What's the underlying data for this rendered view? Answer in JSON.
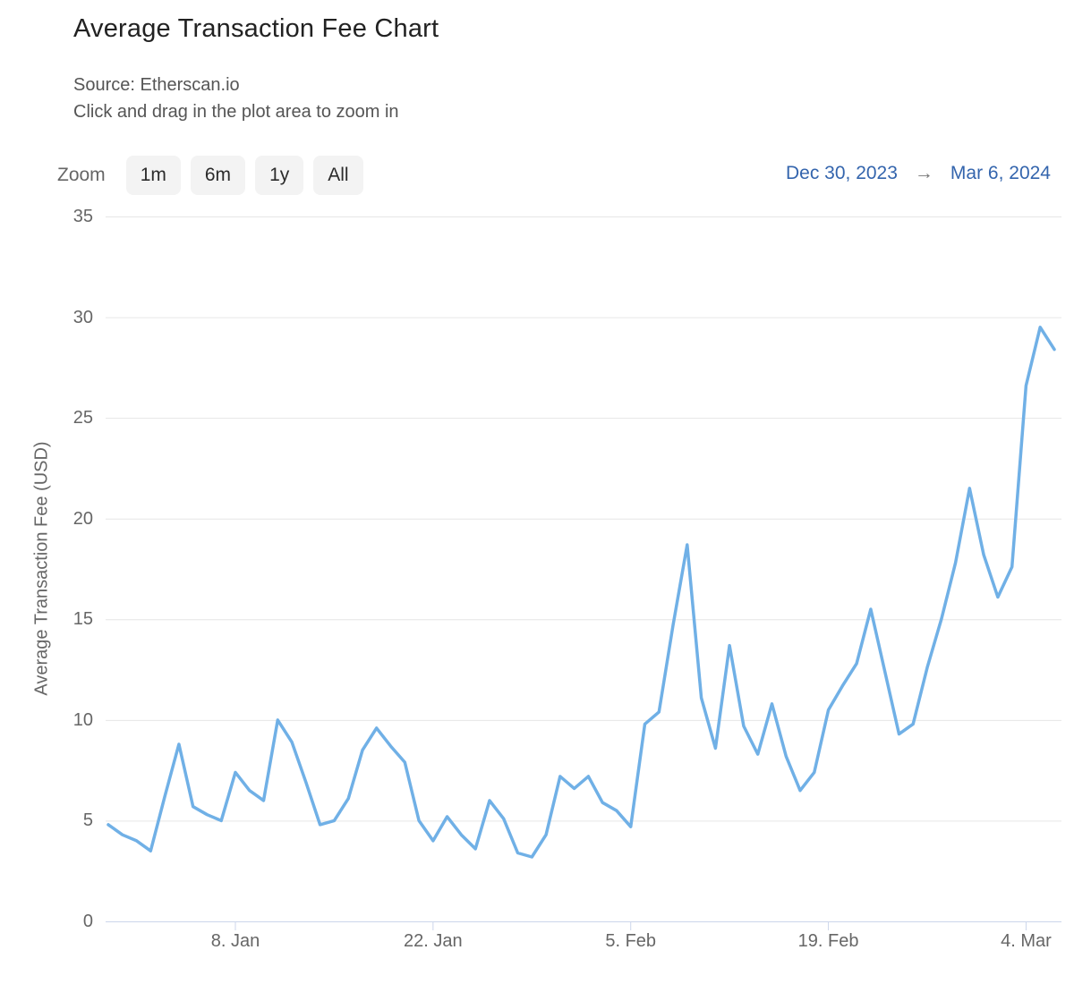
{
  "header": {
    "title": "Average Transaction Fee Chart",
    "subtitle1": "Source: Etherscan.io",
    "subtitle2": "Click and drag in the plot area to zoom in"
  },
  "toolbar": {
    "zoom_label": "Zoom",
    "buttons": [
      "1m",
      "6m",
      "1y",
      "All"
    ],
    "range_from": "Dec 30, 2023",
    "range_arrow": "→",
    "range_to": "Mar 6, 2024"
  },
  "colors": {
    "series": "#70B0E6",
    "grid": "#e6e6e6",
    "axis_line": "#ccd6eb",
    "axis_label": "#666666",
    "range_text": "#3465ad"
  },
  "chart_data": {
    "type": "line",
    "title": "Average Transaction Fee Chart",
    "subtitle": "Source: Etherscan.io",
    "ylabel": "Average Transaction Fee (USD)",
    "xlabel": "",
    "ylim": [
      0,
      35
    ],
    "yticks": [
      0,
      5,
      10,
      15,
      20,
      25,
      30,
      35
    ],
    "grid": "horizontal",
    "legend": "none",
    "start_date": "Dec 30, 2023",
    "end_date": "Mar 6, 2024",
    "interval": "daily",
    "xticks": [
      {
        "label": "8. Jan",
        "day_index": 9
      },
      {
        "label": "22. Jan",
        "day_index": 23
      },
      {
        "label": "5. Feb",
        "day_index": 37
      },
      {
        "label": "19. Feb",
        "day_index": 51
      },
      {
        "label": "4. Mar",
        "day_index": 65
      }
    ],
    "dates": [
      "Dec 30",
      "Dec 31",
      "Jan 1",
      "Jan 2",
      "Jan 3",
      "Jan 4",
      "Jan 5",
      "Jan 6",
      "Jan 7",
      "Jan 8",
      "Jan 9",
      "Jan 10",
      "Jan 11",
      "Jan 12",
      "Jan 13",
      "Jan 14",
      "Jan 15",
      "Jan 16",
      "Jan 17",
      "Jan 18",
      "Jan 19",
      "Jan 20",
      "Jan 21",
      "Jan 22",
      "Jan 23",
      "Jan 24",
      "Jan 25",
      "Jan 26",
      "Jan 27",
      "Jan 28",
      "Jan 29",
      "Jan 30",
      "Jan 31",
      "Feb 1",
      "Feb 2",
      "Feb 3",
      "Feb 4",
      "Feb 5",
      "Feb 6",
      "Feb 7",
      "Feb 8",
      "Feb 9",
      "Feb 10",
      "Feb 11",
      "Feb 12",
      "Feb 13",
      "Feb 14",
      "Feb 15",
      "Feb 16",
      "Feb 17",
      "Feb 18",
      "Feb 19",
      "Feb 20",
      "Feb 21",
      "Feb 22",
      "Feb 23",
      "Feb 24",
      "Feb 25",
      "Feb 26",
      "Feb 27",
      "Feb 28",
      "Feb 29",
      "Mar 1",
      "Mar 2",
      "Mar 3",
      "Mar 4",
      "Mar 5",
      "Mar 6"
    ],
    "values": [
      4.8,
      4.3,
      4.0,
      3.5,
      6.2,
      8.8,
      5.7,
      5.3,
      5.0,
      7.4,
      6.5,
      6.0,
      10.0,
      8.9,
      6.9,
      4.8,
      5.0,
      6.1,
      8.5,
      9.6,
      8.7,
      7.9,
      5.0,
      4.0,
      5.2,
      4.3,
      3.6,
      6.0,
      5.1,
      3.4,
      3.2,
      4.3,
      7.2,
      6.6,
      7.2,
      5.9,
      5.5,
      4.7,
      9.8,
      10.4,
      14.7,
      18.7,
      11.1,
      8.6,
      13.7,
      9.7,
      8.3,
      10.8,
      8.2,
      6.5,
      7.4,
      10.5,
      11.7,
      12.8,
      15.5,
      12.4,
      9.3,
      9.8,
      12.6,
      15.0,
      17.8,
      21.5,
      18.2,
      16.1,
      17.6,
      26.6,
      29.5,
      28.4
    ]
  }
}
